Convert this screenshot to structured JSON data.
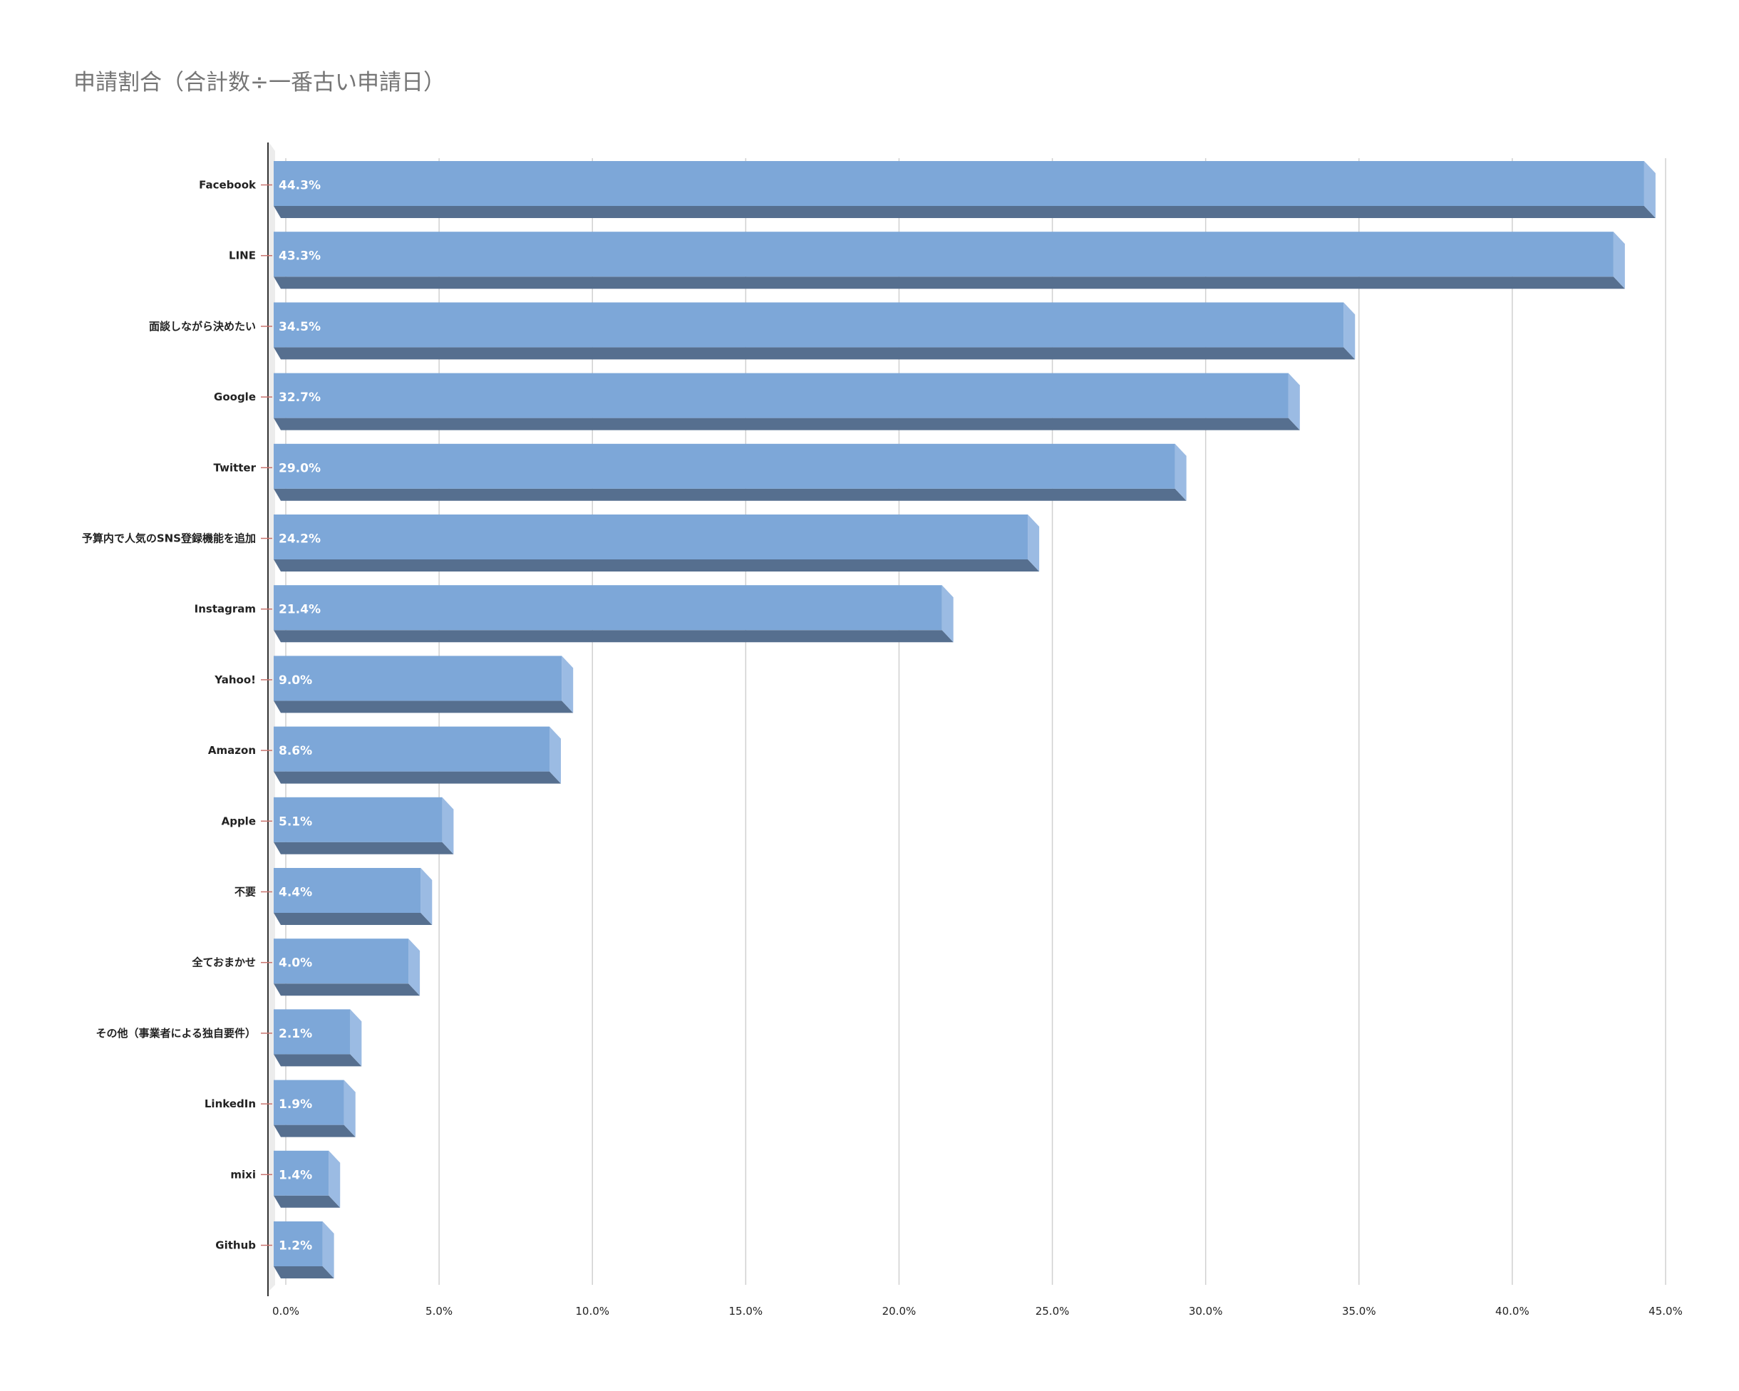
{
  "chart_data": {
    "type": "bar",
    "orientation": "horizontal",
    "title": "申請割合（合計数÷一番古い申請日）",
    "xlabel": "",
    "ylabel": "",
    "categories": [
      "Facebook",
      "LINE",
      "面談しながら決めたい",
      "Google",
      "Twitter",
      "予算内で人気のSNS登録機能を追加",
      "Instagram",
      "Yahoo!",
      "Amazon",
      "Apple",
      "不要",
      "全ておまかせ",
      "その他（事業者による独自要件）",
      "LinkedIn",
      "mixi",
      "Github"
    ],
    "values": [
      44.3,
      43.3,
      34.5,
      32.7,
      29.0,
      24.2,
      21.4,
      9.0,
      8.6,
      5.1,
      4.4,
      4.0,
      2.1,
      1.9,
      1.4,
      1.2
    ],
    "data_labels": [
      "44.3%",
      "43.3%",
      "34.5%",
      "32.7%",
      "29.0%",
      "24.2%",
      "21.4%",
      "9.0%",
      "8.6%",
      "5.1%",
      "4.4%",
      "4.0%",
      "2.1%",
      "1.9%",
      "1.4%",
      "1.2%"
    ],
    "xlim": [
      0,
      45
    ],
    "ticks": [
      0,
      5,
      10,
      15,
      20,
      25,
      30,
      35,
      40,
      45
    ],
    "tick_labels": [
      "0.0%",
      "5.0%",
      "10.0%",
      "15.0%",
      "20.0%",
      "25.0%",
      "30.0%",
      "35.0%",
      "40.0%",
      "45.0%"
    ],
    "grid": true,
    "legend": "none",
    "style": "3d",
    "colors": {
      "bar_front": "#7da7d8",
      "bar_side": "#9bbbe3",
      "bar_bottom": "#566f8f",
      "gridline": "#d0d0d0",
      "axis": "#333333",
      "category_tick": "#c9746e"
    }
  }
}
